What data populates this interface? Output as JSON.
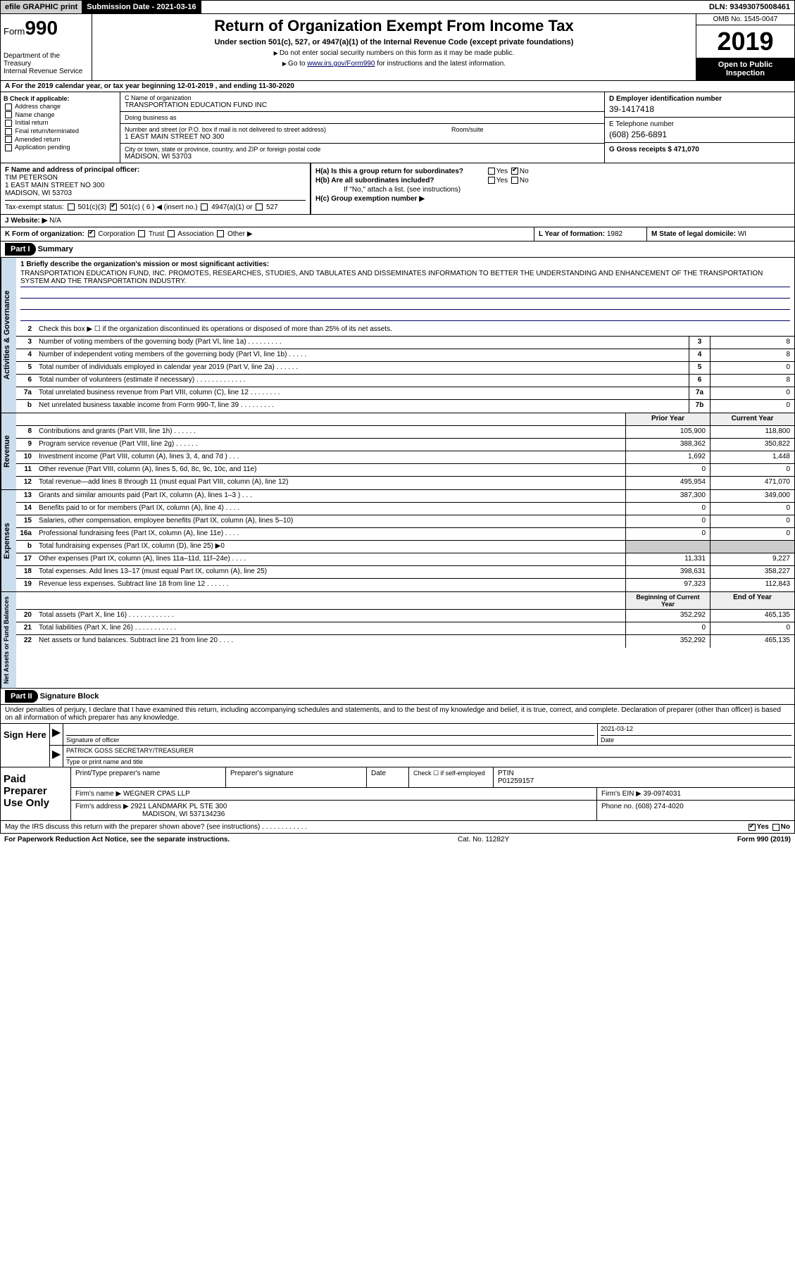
{
  "top": {
    "efile": "efile GRAPHIC print",
    "sub_label": "Submission Date - ",
    "sub_date": "2021-03-16",
    "dln_label": "DLN: ",
    "dln": "93493075008461"
  },
  "header": {
    "form_prefix": "Form",
    "form_num": "990",
    "dept": "Department of the Treasury\nInternal Revenue Service",
    "title": "Return of Organization Exempt From Income Tax",
    "subtitle": "Under section 501(c), 527, or 4947(a)(1) of the Internal Revenue Code (except private foundations)",
    "note1": "Do not enter social security numbers on this form as it may be made public.",
    "note2_pre": "Go to ",
    "note2_link": "www.irs.gov/Form990",
    "note2_post": " for instructions and the latest information.",
    "omb": "OMB No. 1545-0047",
    "year": "2019",
    "public": "Open to Public Inspection"
  },
  "rowA": "A For the 2019 calendar year, or tax year beginning 12-01-2019    , and ending 11-30-2020",
  "boxB": {
    "label": "B Check if applicable:",
    "opts": [
      "Address change",
      "Name change",
      "Initial return",
      "Final return/terminated",
      "Amended return",
      "Application pending"
    ]
  },
  "boxC": {
    "name_lbl": "C Name of organization",
    "name": "TRANSPORTATION EDUCATION FUND INC",
    "dba_lbl": "Doing business as",
    "dba": "",
    "street_lbl": "Number and street (or P.O. box if mail is not delivered to street address)",
    "room_lbl": "Room/suite",
    "street": "1 EAST MAIN STREET NO 300",
    "city_lbl": "City or town, state or province, country, and ZIP or foreign postal code",
    "city": "MADISON, WI  53703"
  },
  "boxD": {
    "lbl": "D Employer identification number",
    "val": "39-1417418"
  },
  "boxE": {
    "lbl": "E Telephone number",
    "val": "(608) 256-6891"
  },
  "boxG": {
    "lbl": "G Gross receipts $ ",
    "val": "471,070"
  },
  "boxF": {
    "lbl": "F  Name and address of principal officer:",
    "name": "TIM PETERSON",
    "addr1": "1 EAST MAIN STREET NO 300",
    "addr2": "MADISON, WI  53703"
  },
  "tax_status": {
    "lbl": "Tax-exempt status:",
    "opts": [
      "501(c)(3)",
      "501(c) ( 6 ) ◀ (insert no.)",
      "4947(a)(1) or",
      "527"
    ],
    "checked_idx": 1
  },
  "boxH": {
    "a_lbl": "H(a)  Is this a group return for subordinates?",
    "a_yes": "Yes",
    "a_no": "No",
    "a_checked": "No",
    "b_lbl": "H(b)  Are all subordinates included?",
    "b_note": "If \"No,\" attach a list. (see instructions)",
    "c_lbl": "H(c)  Group exemption number ▶"
  },
  "rowJ": {
    "lbl": "J   Website: ▶",
    "val": "N/A"
  },
  "rowK": {
    "lbl": "K Form of organization:",
    "opts": [
      "Corporation",
      "Trust",
      "Association",
      "Other ▶"
    ],
    "checked_idx": 0,
    "L_lbl": "L Year of formation: ",
    "L_val": "1982",
    "M_lbl": "M State of legal domicile: ",
    "M_val": "WI"
  },
  "part1": {
    "hdr": "Part I",
    "title": "Summary"
  },
  "mission_lbl": "1  Briefly describe the organization's mission or most significant activities:",
  "mission": "TRANSPORTATION EDUCATION FUND, INC. PROMOTES, RESEARCHES, STUDIES, AND TABULATES AND DISSEMINATES INFORMATION TO BETTER THE UNDERSTANDING AND ENHANCEMENT OF THE TRANSPORTATION SYSTEM AND THE TRANSPORTATION INDUSTRY.",
  "line2": "Check this box ▶ ☐  if the organization discontinued its operations or disposed of more than 25% of its net assets.",
  "governance_lines": [
    {
      "n": "3",
      "t": "Number of voting members of the governing body (Part VI, line 1a)   .    .    .    .    .    .    .    .    .",
      "box": "3",
      "v": "8"
    },
    {
      "n": "4",
      "t": "Number of independent voting members of the governing body (Part VI, line 1b)   .    .    .    .    .",
      "box": "4",
      "v": "8"
    },
    {
      "n": "5",
      "t": "Total number of individuals employed in calendar year 2019 (Part V, line 2a)   .    .    .    .    .    .",
      "box": "5",
      "v": "0"
    },
    {
      "n": "6",
      "t": "Total number of volunteers (estimate if necessary)    .    .    .    .    .    .    .    .    .    .    .    .    .",
      "box": "6",
      "v": "8"
    },
    {
      "n": "7a",
      "t": "Total unrelated business revenue from Part VIII, column (C), line 12   .    .    .    .    .    .    .    .",
      "box": "7a",
      "v": "0"
    },
    {
      "n": "b",
      "t": "Net unrelated business taxable income from Form 990-T, line 39    .    .    .    .    .    .    .    .    .",
      "box": "7b",
      "v": "0"
    }
  ],
  "col_hdrs": {
    "prior": "Prior Year",
    "current": "Current Year"
  },
  "revenue": [
    {
      "n": "8",
      "t": "Contributions and grants (Part VIII, line 1h)   .    .    .    .    .    .",
      "p": "105,900",
      "c": "118,800"
    },
    {
      "n": "9",
      "t": "Program service revenue (Part VIII, line 2g)   .    .    .    .    .    .",
      "p": "388,362",
      "c": "350,822"
    },
    {
      "n": "10",
      "t": "Investment income (Part VIII, column (A), lines 3, 4, and 7d )    .    .    .",
      "p": "1,692",
      "c": "1,448"
    },
    {
      "n": "11",
      "t": "Other revenue (Part VIII, column (A), lines 5, 6d, 8c, 9c, 10c, and 11e)",
      "p": "0",
      "c": "0"
    },
    {
      "n": "12",
      "t": "Total revenue—add lines 8 through 11 (must equal Part VIII, column (A), line 12)",
      "p": "495,954",
      "c": "471,070"
    }
  ],
  "expenses": [
    {
      "n": "13",
      "t": "Grants and similar amounts paid (Part IX, column (A), lines 1–3 )   .    .    .",
      "p": "387,300",
      "c": "349,000"
    },
    {
      "n": "14",
      "t": "Benefits paid to or for members (Part IX, column (A), line 4)   .    .    .    .",
      "p": "0",
      "c": "0"
    },
    {
      "n": "15",
      "t": "Salaries, other compensation, employee benefits (Part IX, column (A), lines 5–10)",
      "p": "0",
      "c": "0"
    },
    {
      "n": "16a",
      "t": "Professional fundraising fees (Part IX, column (A), line 11e)   .    .    .    .",
      "p": "0",
      "c": "0"
    },
    {
      "n": "b",
      "t": "Total fundraising expenses (Part IX, column (D), line 25) ▶0",
      "p": "",
      "c": "",
      "shaded": true
    },
    {
      "n": "17",
      "t": "Other expenses (Part IX, column (A), lines 11a–11d, 11f–24e)   .    .    .    .",
      "p": "11,331",
      "c": "9,227"
    },
    {
      "n": "18",
      "t": "Total expenses. Add lines 13–17 (must equal Part IX, column (A), line 25)",
      "p": "398,631",
      "c": "358,227"
    },
    {
      "n": "19",
      "t": "Revenue less expenses. Subtract line 18 from line 12   .    .    .    .    .    .",
      "p": "97,323",
      "c": "112,843"
    }
  ],
  "net_hdrs": {
    "begin": "Beginning of Current Year",
    "end": "End of Year"
  },
  "netassets": [
    {
      "n": "20",
      "t": "Total assets (Part X, line 16)   .    .    .    .    .    .    .    .    .    .    .    .",
      "p": "352,292",
      "c": "465,135"
    },
    {
      "n": "21",
      "t": "Total liabilities (Part X, line 26)   .    .    .    .    .    .    .    .    .    .    .",
      "p": "0",
      "c": "0"
    },
    {
      "n": "22",
      "t": "Net assets or fund balances. Subtract line 21 from line 20   .    .    .    .",
      "p": "352,292",
      "c": "465,135"
    }
  ],
  "part2": {
    "hdr": "Part II",
    "title": "Signature Block"
  },
  "penalty": "Under penalties of perjury, I declare that I have examined this return, including accompanying schedules and statements, and to the best of my knowledge and belief, it is true, correct, and complete. Declaration of preparer (other than officer) is based on all information of which preparer has any knowledge.",
  "sign": {
    "here": "Sign Here",
    "sig_lbl": "Signature of officer",
    "date_lbl": "Date",
    "date": "2021-03-12",
    "name": "PATRICK GOSS  SECRETARY/TREASURER",
    "name_lbl": "Type or print name and title"
  },
  "paid": {
    "here": "Paid Preparer Use Only",
    "print_lbl": "Print/Type preparer's name",
    "sig_lbl": "Preparer's signature",
    "date_lbl": "Date",
    "check_lbl": "Check ☐ if self-employed",
    "ptin_lbl": "PTIN",
    "ptin": "P01259157",
    "firm_name_lbl": "Firm's name    ▶",
    "firm_name": "WEGNER CPAS LLP",
    "firm_ein_lbl": "Firm's EIN ▶",
    "firm_ein": "39-0974031",
    "firm_addr_lbl": "Firm's address ▶",
    "firm_addr1": "2921 LANDMARK PL STE 300",
    "firm_addr2": "MADISON, WI  537134236",
    "phone_lbl": "Phone no. ",
    "phone": "(608) 274-4020"
  },
  "discuss": "May the IRS discuss this return with the preparer shown above? (see instructions)    .    .    .    .    .    .    .    .    .    .    .    .",
  "discuss_yes": "Yes",
  "discuss_no": "No",
  "discuss_checked": "Yes",
  "footer": {
    "left": "For Paperwork Reduction Act Notice, see the separate instructions.",
    "mid": "Cat. No. 11282Y",
    "right": "Form 990 (2019)"
  },
  "vert_labels": {
    "gov": "Activities & Governance",
    "rev": "Revenue",
    "exp": "Expenses",
    "net": "Net Assets or Fund Balances"
  },
  "colors": {
    "accent": "#cde",
    "link": "#006"
  }
}
